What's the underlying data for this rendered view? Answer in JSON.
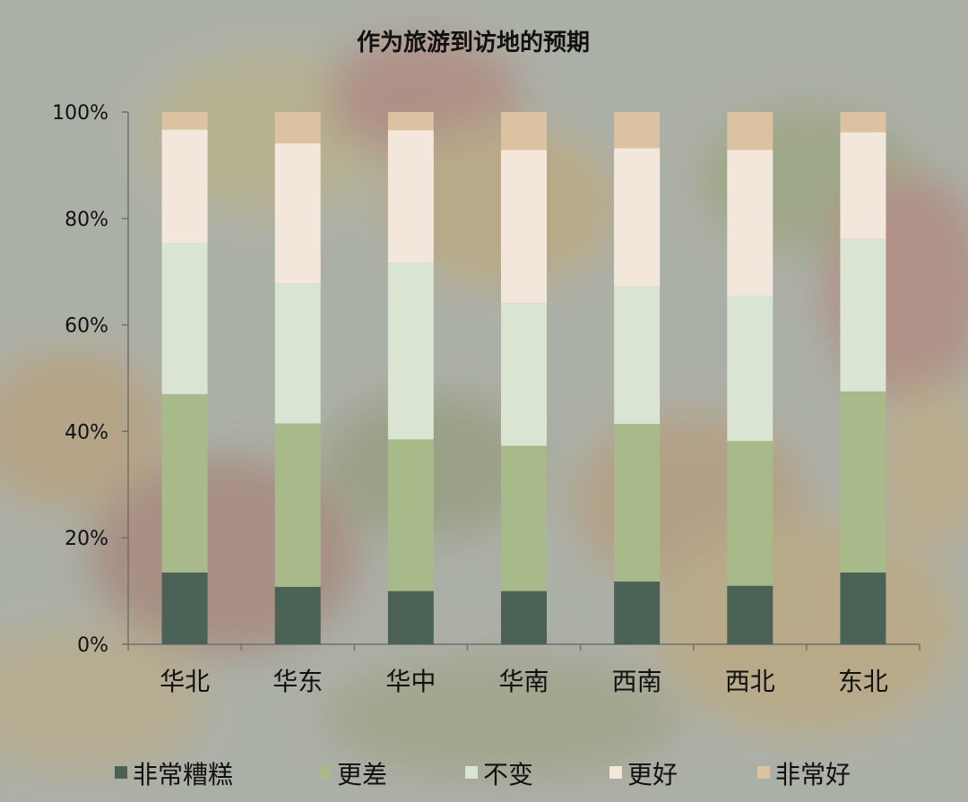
{
  "chart_data": {
    "type": "bar",
    "stacked": true,
    "title": "作为旅游到访地的预期",
    "categories": [
      "华北",
      "华东",
      "华中",
      "华南",
      "西南",
      "西北",
      "东北"
    ],
    "yticks": [
      "0%",
      "20%",
      "40%",
      "60%",
      "80%",
      "100%"
    ],
    "ylim": [
      0,
      100
    ],
    "series": [
      {
        "name": "非常糟糕",
        "color": "#4a6356",
        "values": [
          13.5,
          10.8,
          10.0,
          10.0,
          11.8,
          11.0,
          13.5
        ]
      },
      {
        "name": "更差",
        "color": "#a8b98a",
        "values": [
          33.5,
          30.7,
          28.5,
          27.3,
          29.6,
          27.2,
          34.0
        ]
      },
      {
        "name": "不变",
        "color": "#d9e4d3",
        "values": [
          28.3,
          26.3,
          33.2,
          26.8,
          25.8,
          27.3,
          28.7
        ]
      },
      {
        "name": "更好",
        "color": "#f3e7dc",
        "values": [
          21.4,
          26.3,
          24.9,
          28.8,
          26.0,
          27.4,
          20.0
        ]
      },
      {
        "name": "非常好",
        "color": "#dcc2a0",
        "values": [
          3.3,
          5.9,
          3.4,
          7.1,
          6.8,
          7.1,
          3.8
        ]
      }
    ],
    "grid": false,
    "legend_position": "bottom"
  }
}
